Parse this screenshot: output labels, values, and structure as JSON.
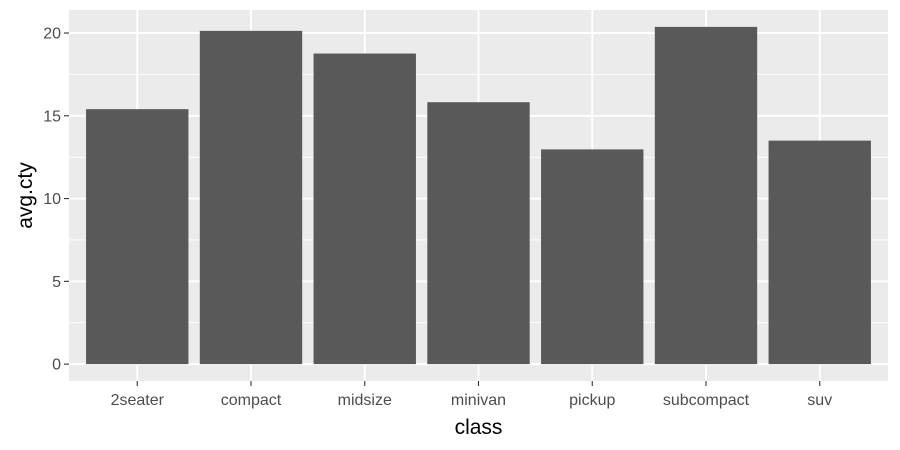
{
  "chart_data": {
    "type": "bar",
    "categories": [
      "2seater",
      "compact",
      "midsize",
      "minivan",
      "pickup",
      "subcompact",
      "suv"
    ],
    "values": [
      15.4,
      20.13,
      18.76,
      15.82,
      12.97,
      20.37,
      13.5
    ],
    "xlabel": "class",
    "ylabel": "avg.cty",
    "ylim": [
      -1.02,
      21.39
    ],
    "yticks": [
      0,
      5,
      10,
      15,
      20
    ],
    "ytick_labels": [
      "0",
      "5",
      "10",
      "15",
      "20"
    ],
    "grid": true,
    "colors": {
      "panel": "#ebebeb",
      "grid_major": "#ffffff",
      "bar": "#595959",
      "tick_mark": "#333333",
      "tick_text": "#4d4d4d",
      "title_text": "#000000"
    }
  }
}
